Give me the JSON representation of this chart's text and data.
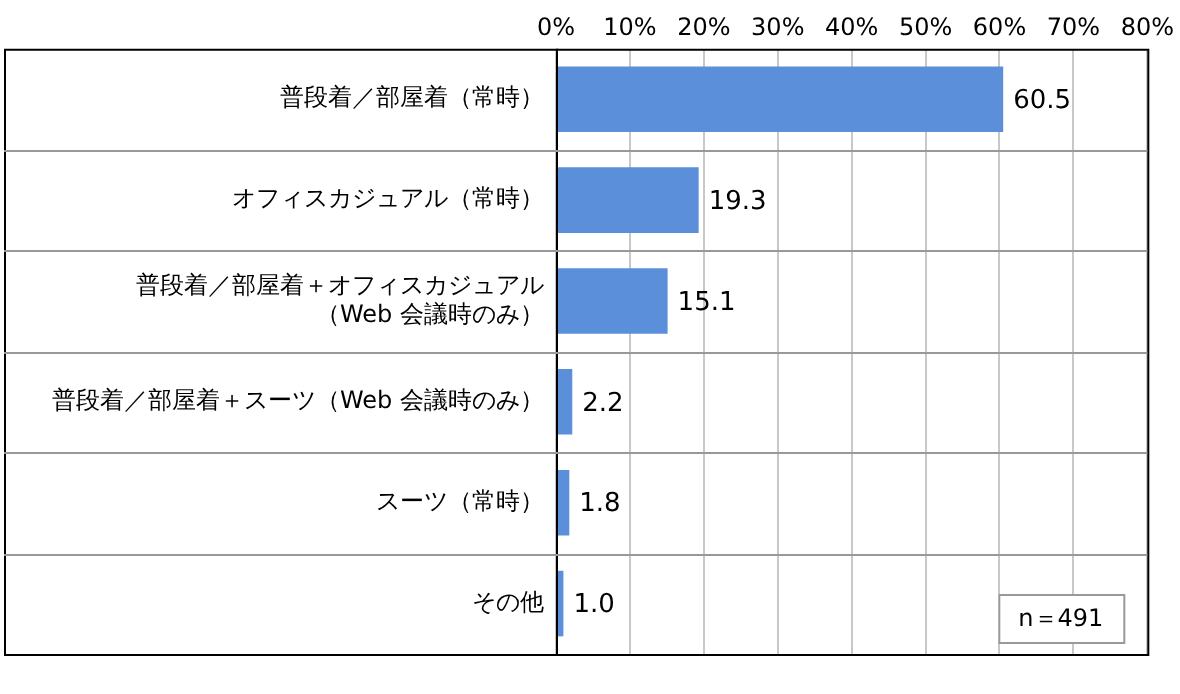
{
  "chart_data": {
    "type": "bar",
    "orientation": "horizontal",
    "categories": [
      "普段着／部屋着（常時）",
      "オフィスカジュアル（常時）",
      "普段着／部屋着＋オフィスカジュアル（Web 会議時のみ）",
      "普段着／部屋着＋スーツ（Web 会議時のみ）",
      "スーツ（常時）",
      "その他"
    ],
    "values": [
      60.5,
      19.3,
      15.1,
      2.2,
      1.8,
      1.0
    ],
    "color": "#5b8fd9",
    "xlim": [
      0,
      80
    ],
    "xticks": [
      {
        "value": 0,
        "label": "0%"
      },
      {
        "value": 10,
        "label": "10%"
      },
      {
        "value": 20,
        "label": "20%"
      },
      {
        "value": 30,
        "label": "30%"
      },
      {
        "value": 40,
        "label": "40%"
      },
      {
        "value": 50,
        "label": "50%"
      },
      {
        "value": 60,
        "label": "60%"
      },
      {
        "value": 70,
        "label": "70%"
      },
      {
        "value": 80,
        "label": "80%"
      }
    ],
    "grid": "x",
    "value_labels": [
      "60.5",
      "19.3",
      "15.1",
      "2.2",
      "1.8",
      "1.0"
    ],
    "annotations": [
      "n＝491"
    ]
  }
}
